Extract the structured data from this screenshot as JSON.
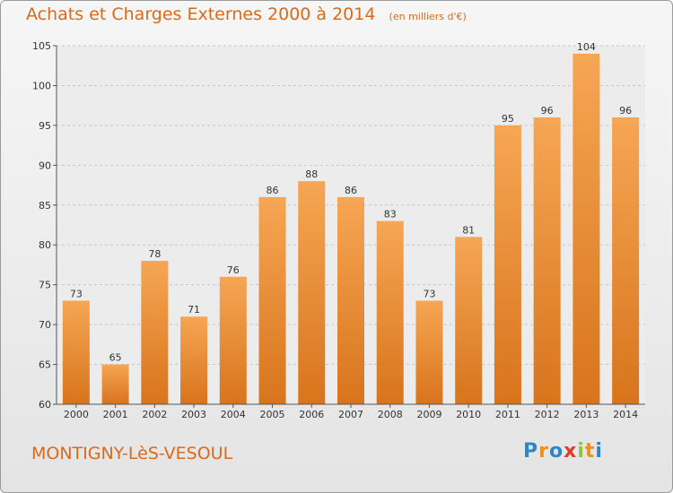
{
  "chart_data": {
    "type": "bar",
    "title": "Achats et Charges Externes 2000 à 2014",
    "subtitle": "(en milliers d'€)",
    "categories": [
      "2000",
      "2001",
      "2002",
      "2003",
      "2004",
      "2005",
      "2006",
      "2007",
      "2008",
      "2009",
      "2010",
      "2011",
      "2012",
      "2013",
      "2014"
    ],
    "values": [
      73,
      65,
      78,
      71,
      76,
      86,
      88,
      86,
      83,
      73,
      81,
      95,
      96,
      104,
      96
    ],
    "ylim": [
      60,
      105
    ],
    "yticks": [
      60,
      65,
      70,
      75,
      80,
      85,
      90,
      95,
      100,
      105
    ],
    "grid": true,
    "bar_color": "#f0963c",
    "title_color": "#d86a1c"
  },
  "footer": {
    "commune": "MONTIGNY-LèS-VESOUL",
    "logo_letters": [
      {
        "char": "P",
        "color": "#2e86c8"
      },
      {
        "char": "r",
        "color": "#f09020"
      },
      {
        "char": "o",
        "color": "#2e86c8"
      },
      {
        "char": "x",
        "color": "#e23a2a"
      },
      {
        "char": "i",
        "color": "#8cc63e"
      },
      {
        "char": "t",
        "color": "#f09020"
      },
      {
        "char": "i",
        "color": "#2e86c8"
      }
    ]
  }
}
